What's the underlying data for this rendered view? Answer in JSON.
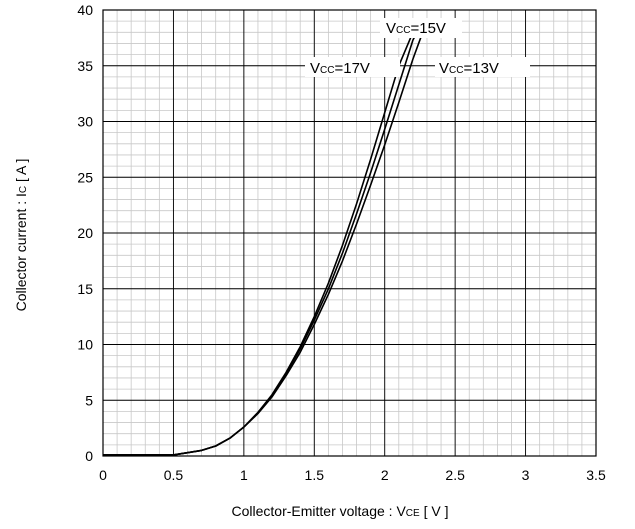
{
  "chart_data": {
    "type": "line",
    "xlabel_main": "Collector-Emitter voltage  :  V",
    "xlabel_sub": "CE",
    "xlabel_unit": " [ V ]",
    "ylabel_main": "Collector current : I",
    "ylabel_sub": "C",
    "ylabel_unit": " [ A ]",
    "xlim": [
      0,
      3.5
    ],
    "ylim": [
      0,
      40
    ],
    "x_ticks": [
      "0",
      "0.5",
      "1",
      "1.5",
      "2",
      "2.5",
      "3",
      "3.5"
    ],
    "y_ticks": [
      "0",
      "5",
      "10",
      "15",
      "20",
      "25",
      "30",
      "35",
      "40"
    ],
    "grid": true,
    "minor_grid": true,
    "legend": "none",
    "series": [
      {
        "label_prefix": "V",
        "label_sub": "CC",
        "label_suffix": "=17V",
        "points": [
          [
            0,
            0.1
          ],
          [
            0.5,
            0.1
          ],
          [
            0.6,
            0.3
          ],
          [
            0.7,
            0.5
          ],
          [
            0.8,
            0.9
          ],
          [
            0.9,
            1.6
          ],
          [
            1.0,
            2.6
          ],
          [
            1.1,
            3.9
          ],
          [
            1.2,
            5.5
          ],
          [
            1.3,
            7.5
          ],
          [
            1.4,
            9.8
          ],
          [
            1.5,
            12.5
          ],
          [
            1.6,
            15.5
          ],
          [
            1.7,
            18.9
          ],
          [
            1.8,
            22.6
          ],
          [
            1.9,
            26.6
          ],
          [
            2.0,
            30.8
          ],
          [
            2.1,
            35.0
          ],
          [
            2.2,
            38.0
          ]
        ]
      },
      {
        "label_prefix": "V",
        "label_sub": "CC",
        "label_suffix": "=15V",
        "points": [
          [
            0,
            0.1
          ],
          [
            0.5,
            0.1
          ],
          [
            0.6,
            0.3
          ],
          [
            0.7,
            0.5
          ],
          [
            0.8,
            0.9
          ],
          [
            0.9,
            1.6
          ],
          [
            1.0,
            2.6
          ],
          [
            1.1,
            3.9
          ],
          [
            1.2,
            5.4
          ],
          [
            1.3,
            7.4
          ],
          [
            1.4,
            9.6
          ],
          [
            1.5,
            12.2
          ],
          [
            1.6,
            15.0
          ],
          [
            1.7,
            18.2
          ],
          [
            1.8,
            21.7
          ],
          [
            1.9,
            25.4
          ],
          [
            2.0,
            29.3
          ],
          [
            2.1,
            33.3
          ],
          [
            2.2,
            37.3
          ],
          [
            2.23,
            38.0
          ]
        ]
      },
      {
        "label_prefix": "V",
        "label_sub": "CC",
        "label_suffix": "=13V",
        "points": [
          [
            0,
            0.1
          ],
          [
            0.5,
            0.1
          ],
          [
            0.6,
            0.3
          ],
          [
            0.7,
            0.5
          ],
          [
            0.8,
            0.9
          ],
          [
            0.9,
            1.6
          ],
          [
            1.0,
            2.6
          ],
          [
            1.1,
            3.8
          ],
          [
            1.2,
            5.3
          ],
          [
            1.3,
            7.2
          ],
          [
            1.4,
            9.3
          ],
          [
            1.5,
            11.8
          ],
          [
            1.6,
            14.5
          ],
          [
            1.7,
            17.5
          ],
          [
            1.8,
            20.8
          ],
          [
            1.9,
            24.3
          ],
          [
            2.0,
            27.9
          ],
          [
            2.1,
            31.7
          ],
          [
            2.2,
            35.6
          ],
          [
            2.27,
            38.0
          ]
        ]
      }
    ]
  }
}
